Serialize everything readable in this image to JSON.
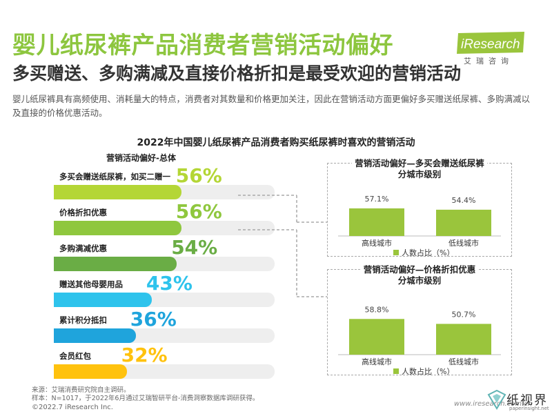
{
  "header": {
    "title": "婴儿纸尿裤产品消费者营销活动偏好",
    "subtitle": "多买赠送、多购满减及直接价格折扣是最受欢迎的营销活动",
    "description": "婴儿纸尿裤具有高频使用、消耗量大的特点，消费者对其数量和价格更加关注，因此在营销活动方面更偏好多买赠送纸尿裤、多购满减以及直接的价格优惠活动。"
  },
  "brand": {
    "logo": "iResearch",
    "sub": "艾瑞咨询"
  },
  "chart_data": [
    {
      "type": "bar",
      "orientation": "horizontal",
      "title": "2022年中国婴儿纸尿裤产品消费者购买纸尿裤时喜欢的营销活动",
      "subtitle": "营销活动偏好-总体",
      "categories": [
        "多买会赠送纸尿裤，如买二赠一",
        "价格折扣优惠",
        "多购满减优惠",
        "赠送其他母婴用品",
        "累计积分抵扣",
        "会员红包"
      ],
      "values": [
        56,
        56,
        54,
        43,
        36,
        32
      ],
      "value_labels": [
        "56%",
        "56%",
        "54%",
        "43%",
        "36%",
        "32%"
      ],
      "unit": "%",
      "xlim": [
        0,
        100
      ],
      "colors": [
        "#b4d636",
        "#8fc73e",
        "#6aad45",
        "#2ec3ec",
        "#1fa4dc",
        "#ffc20e"
      ],
      "value_colors": [
        "#b4d636",
        "#8fc73e",
        "#6aad45",
        "#2ec3ec",
        "#1fa4dc",
        "#ffc20e"
      ]
    },
    {
      "type": "bar",
      "title": "营销活动偏好—多买会赠送纸尿裤\n分城市级别",
      "categories": [
        "高线城市",
        "低线城市"
      ],
      "series": [
        {
          "name": "人数占比（%）",
          "values": [
            57.1,
            54.4
          ]
        }
      ],
      "value_labels": [
        "57.1%",
        "54.4%"
      ],
      "color": "#9ac53c"
    },
    {
      "type": "bar",
      "title": "营销活动偏好—价格折扣优惠\n分城市级别",
      "categories": [
        "高线城市",
        "低线城市"
      ],
      "series": [
        {
          "name": "人数占比（%）",
          "values": [
            58.8,
            50.7
          ]
        }
      ],
      "value_labels": [
        "58.8%",
        "50.7%"
      ],
      "color": "#9ac53c"
    }
  ],
  "source": {
    "line1": "来源：艾瑞消费研究院自主调研。",
    "line2": "样本：N=1017，于2022年6月通过艾瑞智研平台-消费洞察数据库调研获得。"
  },
  "footer": {
    "copyright": "©2022.7 iResearch Inc.",
    "url": "www.iresearch.com.cn",
    "watermark_name": "纸视界",
    "watermark_url": "paperinsight.net"
  }
}
